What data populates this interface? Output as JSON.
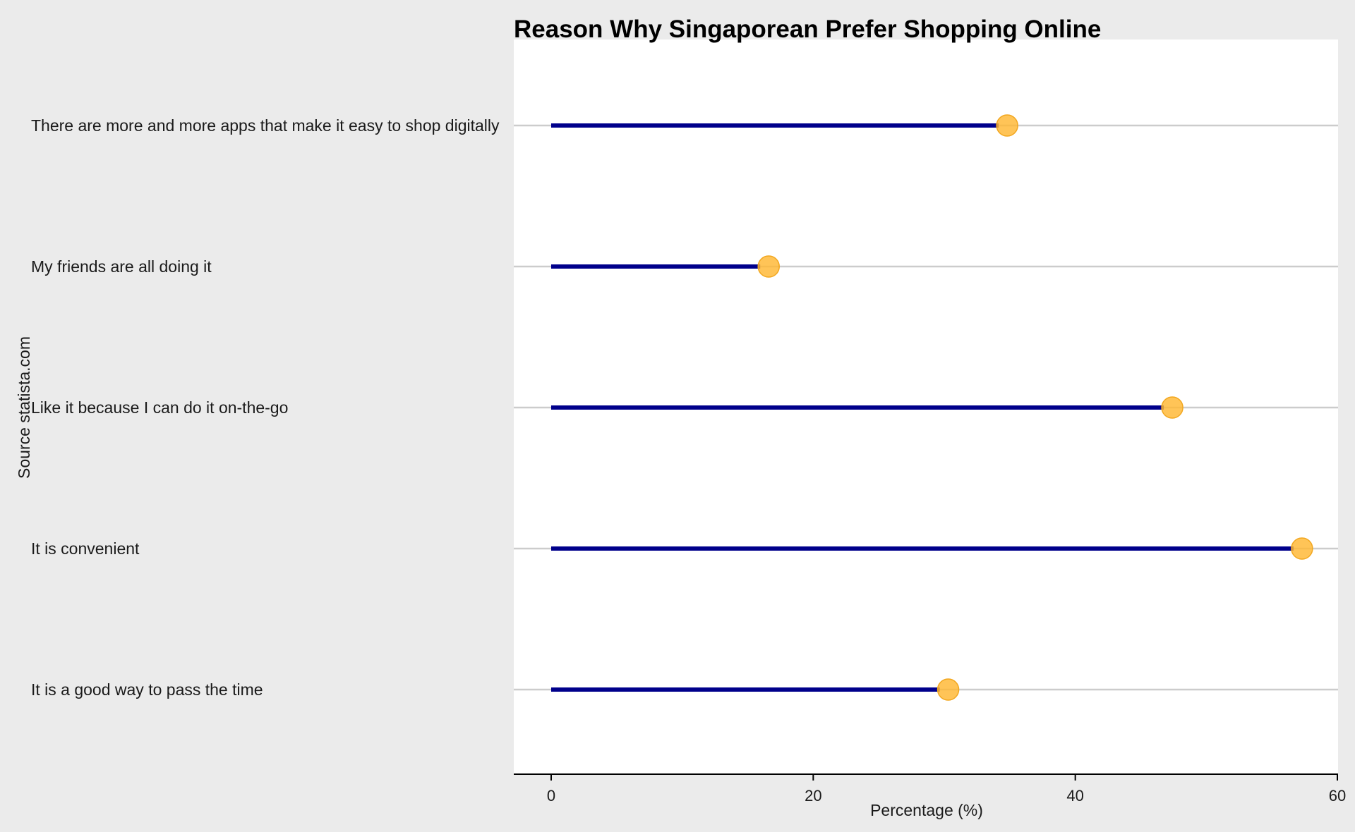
{
  "chart_data": {
    "type": "lollipop",
    "title": "Reason Why Singaporean Prefer Shopping Online",
    "xlabel": "Percentage (%)",
    "ylabel": "Source statista.com",
    "xlim": [
      -2.8,
      60
    ],
    "xticks": [
      0,
      20,
      40,
      60
    ],
    "grid": "horizontal",
    "categories": [
      "There are more and more apps that make it easy to shop digitally",
      "My friends are all doing it",
      "Like it because I can do it on-the-go",
      "It is convenient",
      "It is a good way to pass the time"
    ],
    "values": [
      34.8,
      16.6,
      47.4,
      57.3,
      30.3
    ],
    "colors": {
      "stem": "#00008b",
      "marker": "#ffb732",
      "marker_edge": "#f2a71f",
      "grid": "#cccccc",
      "panel": "#ffffff",
      "background": "#ebebeb"
    }
  }
}
